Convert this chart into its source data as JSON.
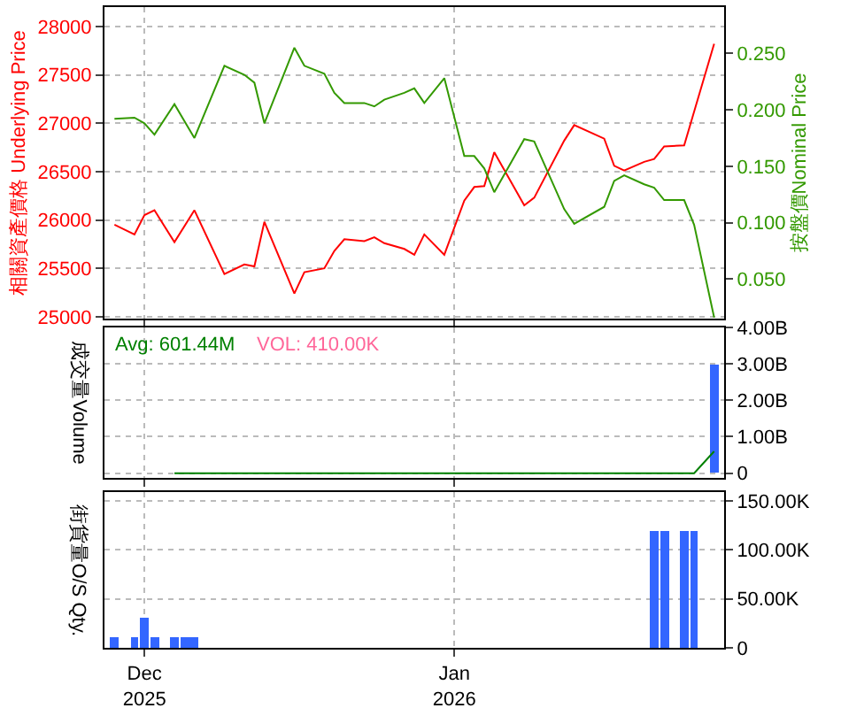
{
  "chart_data": [
    {
      "type": "line",
      "ylabel": "相關資產價格 Underlying Price",
      "y2label": "按盤價Nominal Price",
      "x": [
        "2025-11-28",
        "2025-11-30",
        "2025-12-01",
        "2025-12-02",
        "2025-12-04",
        "2025-12-06",
        "2025-12-09",
        "2025-12-11",
        "2025-12-12",
        "2025-12-13",
        "2025-12-16",
        "2025-12-17",
        "2025-12-19",
        "2025-12-20",
        "2025-12-21",
        "2025-12-23",
        "2025-12-24",
        "2025-12-25",
        "2025-12-27",
        "2025-12-28",
        "2025-12-29",
        "2025-12-31",
        "2026-01-02",
        "2026-01-03",
        "2026-01-04",
        "2026-01-05",
        "2026-01-08",
        "2026-01-09",
        "2026-01-12",
        "2026-01-13",
        "2026-01-16",
        "2026-01-17",
        "2026-01-18",
        "2026-01-20",
        "2026-01-21",
        "2026-01-22",
        "2026-01-24",
        "2026-01-25",
        "2026-01-27"
      ],
      "series": [
        {
          "color": "#ff0000",
          "values": [
            25950,
            25850,
            26050,
            26100,
            25770,
            26100,
            25440,
            25540,
            25520,
            25980,
            25240,
            25460,
            25500,
            25680,
            25800,
            25780,
            25820,
            25760,
            25700,
            25640,
            25850,
            25640,
            26200,
            26340,
            26350,
            26700,
            26150,
            26230,
            26820,
            26980,
            26840,
            26560,
            26510,
            26600,
            26630,
            26760,
            26770,
            27120,
            27820
          ]
        },
        {
          "color": "#339900",
          "axis": "y2",
          "values": [
            0.192,
            0.193,
            0.188,
            0.178,
            0.205,
            0.175,
            0.239,
            0.231,
            0.224,
            0.188,
            0.255,
            0.239,
            0.232,
            0.215,
            0.206,
            0.206,
            0.203,
            0.209,
            0.215,
            0.219,
            0.206,
            0.228,
            0.159,
            0.159,
            0.148,
            0.127,
            0.174,
            0.172,
            0.112,
            0.099,
            0.114,
            0.137,
            0.142,
            0.134,
            0.131,
            0.12,
            0.12,
            0.098,
            0.016
          ]
        }
      ],
      "xlim": [
        "2025-11-27",
        "2026-01-28"
      ],
      "xticks": [
        {
          "value": "2025-12-01",
          "label": null
        },
        {
          "value": "2026-01-01",
          "label": null
        }
      ],
      "ylim": [
        24980,
        28200
      ],
      "yticks": [
        25000,
        25500,
        26000,
        26500,
        27000,
        27500,
        28000
      ],
      "y2lim": [
        0.015,
        0.291
      ],
      "y2ticks": [
        {
          "value": 0.05,
          "label": "0.050"
        },
        {
          "value": 0.1,
          "label": "0.100"
        },
        {
          "value": 0.15,
          "label": "0.150"
        },
        {
          "value": 0.2,
          "label": "0.200"
        },
        {
          "value": 0.25,
          "label": "0.250"
        }
      ],
      "grid": true,
      "tick_labels": "y"
    },
    {
      "type": "bar",
      "ylabel": "成交量Volume",
      "series": [
        {
          "color": "#3366ff",
          "x": [
            "2026-01-27"
          ],
          "values": [
            3000000000
          ]
        },
        {
          "type": "line",
          "color": "#008000",
          "x": [
            "2025-12-04",
            "2026-01-25",
            "2026-01-27"
          ],
          "values": [
            0,
            0,
            600000000
          ]
        }
      ],
      "annotations": [
        "Avg: 601.44M",
        "VOL: 410.00K"
      ],
      "xlim": [
        "2025-11-27",
        "2026-01-28"
      ],
      "xticks": [
        {
          "value": "2025-12-01",
          "label": null
        },
        {
          "value": "2026-01-01",
          "label": null
        }
      ],
      "ylim": [
        -130000000,
        4000000000
      ],
      "yticks": [
        0,
        {
          "value": 1000000000,
          "label": "1.00B"
        },
        {
          "value": 2000000000,
          "label": "2.00B"
        },
        {
          "value": 3000000000,
          "label": "3.00B"
        },
        {
          "value": 4000000000,
          "label": "4.00B"
        }
      ],
      "grid": true,
      "tick_labels": "y"
    },
    {
      "type": "bar",
      "ylabel": "街貨量O/S Qty.",
      "series": [
        {
          "color": "#3366ff",
          "x": [
            "2025-11-28",
            "2025-11-30",
            "2025-12-01",
            "2025-12-02",
            "2025-12-04",
            "2025-12-05",
            "2025-12-06",
            "2026-01-21",
            "2026-01-22",
            "2026-01-24",
            "2026-01-25"
          ],
          "values": [
            10000,
            10000,
            30000,
            10000,
            10000,
            10000,
            10000,
            120000,
            120000,
            120000,
            120000
          ]
        }
      ],
      "xlim": [
        "2025-11-27",
        "2026-01-28"
      ],
      "xticks": [
        {
          "value": "2025-12-01",
          "label": "Dec\n2025"
        },
        {
          "value": "2026-01-01",
          "label": "Jan\n2026"
        }
      ],
      "ylim": [
        0,
        159000
      ],
      "yticks": [
        0,
        {
          "value": 50000,
          "label": "50.00K"
        },
        {
          "value": 100000,
          "label": "100.00K"
        },
        {
          "value": 150000,
          "label": "150.00K"
        }
      ],
      "grid": true
    }
  ]
}
